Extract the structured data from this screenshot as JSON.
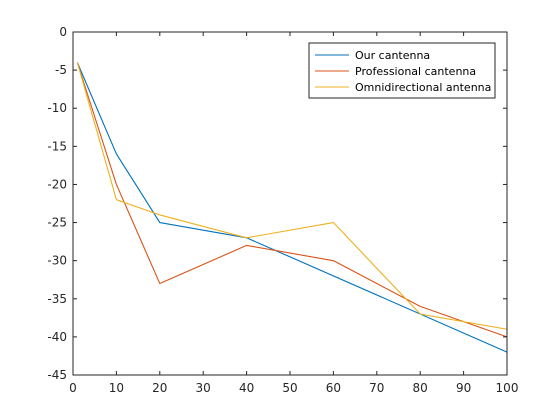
{
  "chart_data": {
    "type": "line",
    "title": "",
    "xlabel": "",
    "ylabel": "",
    "xlim": [
      0,
      100
    ],
    "ylim": [
      -45,
      0
    ],
    "x_ticks": [
      0,
      10,
      20,
      30,
      40,
      50,
      60,
      70,
      80,
      90,
      100
    ],
    "y_ticks": [
      0,
      -5,
      -10,
      -15,
      -20,
      -25,
      -30,
      -35,
      -40,
      -45
    ],
    "x_tick_labels": [
      "0",
      "10",
      "20",
      "30",
      "40",
      "50",
      "60",
      "70",
      "80",
      "90",
      "100"
    ],
    "y_tick_labels": [
      "0",
      "-5",
      "-10",
      "-15",
      "-20",
      "-25",
      "-30",
      "-35",
      "-40",
      "-45"
    ],
    "grid": false,
    "legend_position": "top-right",
    "series": [
      {
        "name": "Our cantenna",
        "color": "#0072BD",
        "x": [
          1,
          10,
          20,
          40,
          100
        ],
        "y": [
          -4,
          -16,
          -25,
          -27,
          -42
        ]
      },
      {
        "name": "Professional cantenna",
        "color": "#D95319",
        "x": [
          1,
          10,
          20,
          40,
          60,
          80,
          100
        ],
        "y": [
          -4,
          -20,
          -33,
          -28,
          -30,
          -36,
          -40
        ]
      },
      {
        "name": "Omnidirectional antenna",
        "color": "#EDB120",
        "x": [
          1,
          10,
          20,
          40,
          60,
          80,
          100
        ],
        "y": [
          -4,
          -22,
          -24,
          -27,
          -25,
          -37,
          -39
        ]
      }
    ]
  }
}
